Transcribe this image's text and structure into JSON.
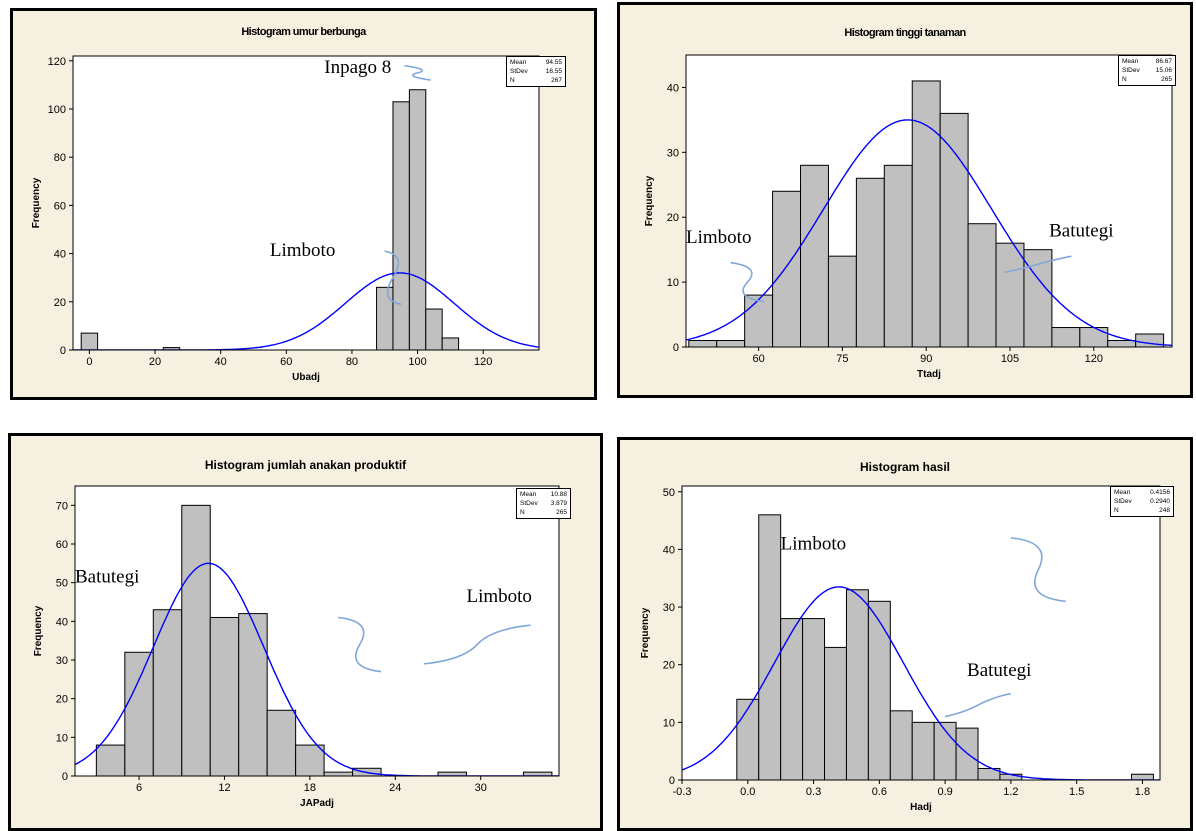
{
  "chart_data": [
    {
      "type": "bar",
      "title": "Histogram umur berbunga",
      "xlabel": "Ubadj",
      "ylabel": "Frequency",
      "xlim": [
        -5,
        137
      ],
      "ylim": [
        0,
        122
      ],
      "xticks": [
        0,
        20,
        40,
        60,
        80,
        100,
        120
      ],
      "yticks": [
        0,
        20,
        40,
        60,
        80,
        100,
        120
      ],
      "bin_width": 5,
      "bins": [
        {
          "x0": -2.5,
          "count": 7
        },
        {
          "x0": 22.5,
          "count": 1
        },
        {
          "x0": 87.5,
          "count": 26
        },
        {
          "x0": 92.5,
          "count": 103
        },
        {
          "x0": 97.5,
          "count": 108
        },
        {
          "x0": 102.5,
          "count": 17
        },
        {
          "x0": 107.5,
          "count": 5
        }
      ],
      "stats": {
        "mean_label": "Mean",
        "mean": "94.55",
        "stdev_label": "StDev",
        "stdev": "16.55",
        "n_label": "N",
        "n": "267"
      },
      "normal_curve": {
        "mean": 94.55,
        "sd": 16.55,
        "peak": 32
      },
      "annotations": [
        {
          "text": "Inpago 8",
          "x": 92,
          "y": 115,
          "anchor": "end",
          "curve": [
            [
              96,
              118
            ],
            [
              104,
              112
            ]
          ]
        },
        {
          "text": "Limboto",
          "x": 55,
          "y": 39,
          "anchor": "start",
          "curve": [
            [
              90,
              41
            ],
            [
              95,
              19
            ]
          ]
        }
      ]
    },
    {
      "type": "bar",
      "title": "Histogram tinggi tanaman",
      "xlabel": "Ttadj",
      "ylabel": "Frequency",
      "xlim": [
        47,
        134
      ],
      "ylim": [
        0,
        45
      ],
      "xticks": [
        60,
        75,
        90,
        105,
        120
      ],
      "yticks": [
        0,
        10,
        20,
        30,
        40
      ],
      "bin_width": 5,
      "bins": [
        {
          "x0": 47.5,
          "count": 1
        },
        {
          "x0": 52.5,
          "count": 1
        },
        {
          "x0": 57.5,
          "count": 8
        },
        {
          "x0": 62.5,
          "count": 24
        },
        {
          "x0": 67.5,
          "count": 28
        },
        {
          "x0": 72.5,
          "count": 14
        },
        {
          "x0": 77.5,
          "count": 26
        },
        {
          "x0": 82.5,
          "count": 28
        },
        {
          "x0": 87.5,
          "count": 41
        },
        {
          "x0": 92.5,
          "count": 36
        },
        {
          "x0": 97.5,
          "count": 19
        },
        {
          "x0": 102.5,
          "count": 16
        },
        {
          "x0": 107.5,
          "count": 15
        },
        {
          "x0": 112.5,
          "count": 3
        },
        {
          "x0": 117.5,
          "count": 3
        },
        {
          "x0": 122.5,
          "count": 1
        },
        {
          "x0": 127.5,
          "count": 2
        }
      ],
      "stats": {
        "mean_label": "Mean",
        "mean": "86.67",
        "stdev_label": "StDev",
        "stdev": "15.06",
        "n_label": "N",
        "n": "265"
      },
      "normal_curve": {
        "mean": 86.67,
        "sd": 15.06,
        "peak": 35
      },
      "annotations": [
        {
          "text": "Limboto",
          "x": 47,
          "y": 16,
          "anchor": "start",
          "curve": [
            [
              55,
              13
            ],
            [
              61,
              7
            ]
          ]
        },
        {
          "text": "Batutegi",
          "x": 112,
          "y": 17,
          "anchor": "start",
          "curve": [
            [
              116,
              14
            ],
            [
              104,
              11.5
            ]
          ]
        }
      ]
    },
    {
      "type": "bar",
      "title": "Histogram jumlah anakan produktif",
      "xlabel": "JAPadj",
      "ylabel": "Frequency",
      "xlim": [
        1.5,
        35.5
      ],
      "ylim": [
        0,
        75
      ],
      "xticks": [
        6,
        12,
        18,
        24,
        30
      ],
      "yticks": [
        0,
        10,
        20,
        30,
        40,
        50,
        60,
        70
      ],
      "bin_width": 2,
      "bins": [
        {
          "x0": 3,
          "count": 8
        },
        {
          "x0": 5,
          "count": 32
        },
        {
          "x0": 7,
          "count": 43
        },
        {
          "x0": 9,
          "count": 70
        },
        {
          "x0": 11,
          "count": 41
        },
        {
          "x0": 13,
          "count": 42
        },
        {
          "x0": 15,
          "count": 17
        },
        {
          "x0": 17,
          "count": 8
        },
        {
          "x0": 19,
          "count": 1
        },
        {
          "x0": 21,
          "count": 2
        },
        {
          "x0": 27,
          "count": 1
        },
        {
          "x0": 33,
          "count": 1
        }
      ],
      "stats": {
        "mean_label": "Mean",
        "mean": "10.88",
        "stdev_label": "StDev",
        "stdev": "3.879",
        "n_label": "N",
        "n": "265"
      },
      "normal_curve": {
        "mean": 10.88,
        "sd": 3.879,
        "peak": 55
      },
      "annotations": [
        {
          "text": "Batutegi",
          "x": 1.5,
          "y": 50,
          "anchor": "start",
          "curve": [
            [
              20,
              41
            ],
            [
              23,
              27
            ]
          ]
        },
        {
          "text": "Limboto",
          "x": 29,
          "y": 45,
          "anchor": "start",
          "curve": [
            [
              33.5,
              39
            ],
            [
              26,
              29
            ]
          ]
        }
      ]
    },
    {
      "type": "bar",
      "title": "Histogram hasil",
      "xlabel": "Hadj",
      "ylabel": "Frequency",
      "xlim": [
        -0.3,
        1.88
      ],
      "ylim": [
        0,
        51
      ],
      "xticks": [
        -0.3,
        0.0,
        0.3,
        0.6,
        0.9,
        1.2,
        1.5,
        1.8
      ],
      "xtick_labels": [
        "-0.3",
        "0.0",
        "0.3",
        "0.6",
        "0.9",
        "1.2",
        "1.5",
        "1.8"
      ],
      "yticks": [
        0,
        10,
        20,
        30,
        40,
        50
      ],
      "bin_width": 0.1,
      "bins": [
        {
          "x0": -0.05,
          "count": 14
        },
        {
          "x0": 0.05,
          "count": 46
        },
        {
          "x0": 0.15,
          "count": 28
        },
        {
          "x0": 0.25,
          "count": 28
        },
        {
          "x0": 0.35,
          "count": 23
        },
        {
          "x0": 0.45,
          "count": 33
        },
        {
          "x0": 0.55,
          "count": 31
        },
        {
          "x0": 0.65,
          "count": 12
        },
        {
          "x0": 0.75,
          "count": 10
        },
        {
          "x0": 0.85,
          "count": 10
        },
        {
          "x0": 0.95,
          "count": 9
        },
        {
          "x0": 1.05,
          "count": 2
        },
        {
          "x0": 1.15,
          "count": 1
        },
        {
          "x0": 1.75,
          "count": 1
        }
      ],
      "stats": {
        "mean_label": "Mean",
        "mean": "0.4156",
        "stdev_label": "StDev",
        "stdev": "0.2940",
        "n_label": "N",
        "n": "248"
      },
      "normal_curve": {
        "mean": 0.4156,
        "sd": 0.294,
        "peak": 33.5
      },
      "annotations": [
        {
          "text": "Limboto",
          "x": 0.15,
          "y": 40,
          "anchor": "start",
          "curve": [
            [
              1.2,
              42
            ],
            [
              1.45,
              31
            ]
          ]
        },
        {
          "text": "Batutegi",
          "x": 1.0,
          "y": 18,
          "anchor": "start",
          "curve": [
            [
              1.2,
              15
            ],
            [
              0.9,
              11
            ]
          ]
        }
      ]
    }
  ]
}
